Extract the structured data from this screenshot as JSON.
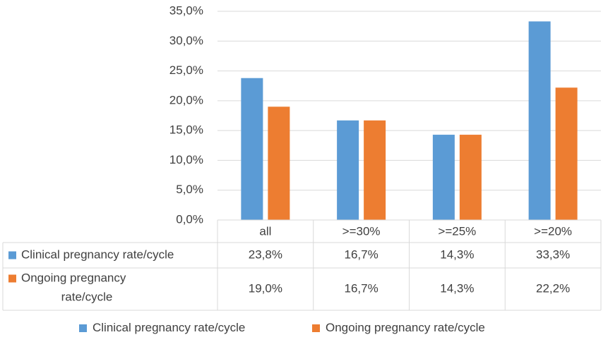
{
  "colors": {
    "clinical": "#5b9bd5",
    "ongoing": "#ed7d31",
    "grid": "#d9d9d9",
    "text": "#404040"
  },
  "chart_data": {
    "type": "bar",
    "title": "",
    "xlabel": "",
    "ylabel": "",
    "ylim": [
      0,
      35
    ],
    "ytick_values": [
      0,
      5,
      10,
      15,
      20,
      25,
      30,
      35
    ],
    "ytick_labels": [
      "0,0%",
      "5,0%",
      "10,0%",
      "15,0%",
      "20,0%",
      "25,0%",
      "30,0%",
      "35,0%"
    ],
    "grid": true,
    "legend_position": "bottom",
    "categories": [
      "all",
      ">=30%",
      ">=25%",
      ">=20%"
    ],
    "series": [
      {
        "name": "Clinical pregnancy rate/cycle",
        "table_label_lines": [
          "Clinical pregnancy rate/cycle"
        ],
        "values": [
          23.8,
          16.7,
          14.3,
          33.3
        ],
        "labels": [
          "23,8%",
          "16,7%",
          "14,3%",
          "33,3%"
        ]
      },
      {
        "name": "Ongoing pregnancy rate/cycle",
        "table_label_lines": [
          "Ongoing pregnancy",
          "rate/cycle"
        ],
        "values": [
          19.0,
          16.7,
          14.3,
          22.2
        ],
        "labels": [
          "19,0%",
          "16,7%",
          "14,3%",
          "22,2%"
        ]
      }
    ]
  }
}
